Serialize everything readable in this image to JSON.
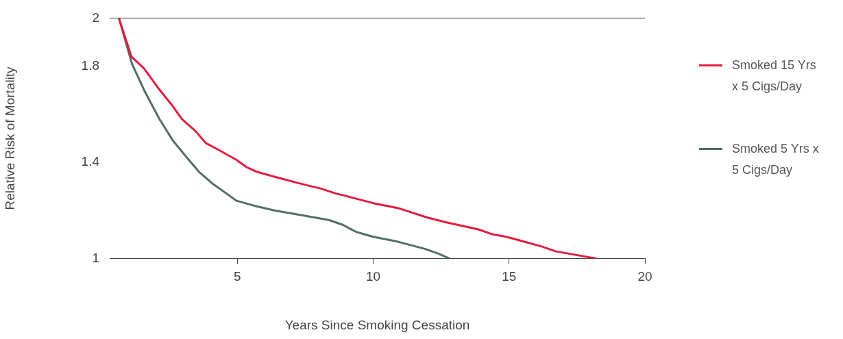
{
  "chart_data": {
    "type": "line",
    "xlabel": "Years Since Smoking Cessation",
    "ylabel": "Relative Risk of Mortality",
    "xlim": [
      0.3,
      20
    ],
    "xticks": [
      5,
      10,
      15,
      20
    ],
    "ylim": [
      1,
      2
    ],
    "yticks": [
      1,
      1.4,
      1.8,
      2
    ],
    "grid": false,
    "legend": "right",
    "marker": "none",
    "line_style": "solid",
    "ref_lines": [
      {
        "axis": "y",
        "value": 2,
        "color": "#444444"
      }
    ],
    "series": [
      {
        "name": "Smoked 15 Yrs x 5 Cigs/Day",
        "color": "#e31c3d",
        "x": [
          0.64,
          1.1,
          1.57,
          2.08,
          2.58,
          2.96,
          3.46,
          3.84,
          4.34,
          4.97,
          5.34,
          5.73,
          6.36,
          7.37,
          8.1,
          8.63,
          9.0,
          10.0,
          10.9,
          12.0,
          12.7,
          13.9,
          14.4,
          14.9,
          16.2,
          16.7,
          17.2,
          18.2
        ],
        "values": [
          2,
          1.84,
          1.79,
          1.71,
          1.64,
          1.58,
          1.53,
          1.48,
          1.45,
          1.41,
          1.38,
          1.36,
          1.34,
          1.31,
          1.29,
          1.27,
          1.26,
          1.23,
          1.21,
          1.17,
          1.15,
          1.12,
          1.1,
          1.09,
          1.05,
          1.03,
          1.02,
          1.0
        ]
      },
      {
        "name": "Smoked 5 Yrs x 5 Cigs/Day",
        "color": "#4f6f63",
        "x": [
          0.64,
          1.12,
          1.57,
          2.13,
          2.63,
          3.14,
          3.59,
          4.1,
          4.6,
          4.97,
          5.6,
          6.36,
          7.37,
          8.37,
          8.88,
          9.38,
          10.0,
          10.9,
          11.9,
          12.4,
          12.8
        ],
        "values": [
          2,
          1.81,
          1.7,
          1.58,
          1.49,
          1.42,
          1.36,
          1.31,
          1.27,
          1.24,
          1.22,
          1.2,
          1.18,
          1.16,
          1.14,
          1.11,
          1.09,
          1.07,
          1.04,
          1.02,
          1.0
        ]
      }
    ]
  }
}
